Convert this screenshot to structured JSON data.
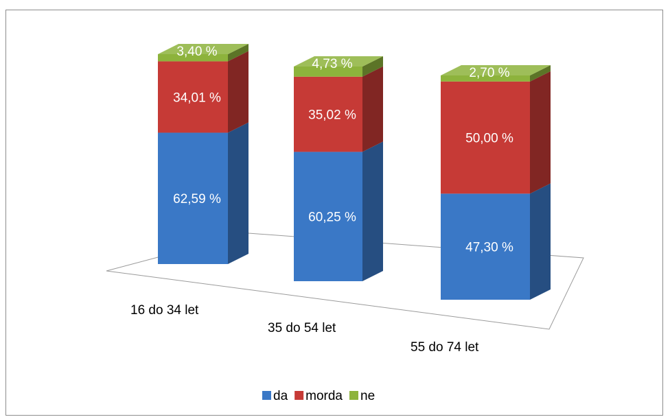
{
  "chart_data": {
    "type": "bar",
    "subtype": "stacked-100-3d",
    "categories": [
      "16 do 34 let",
      "35 do 54 let",
      "55 do 74 let"
    ],
    "series": [
      {
        "name": "da",
        "values": [
          62.59,
          60.25,
          47.3
        ],
        "labels": [
          "62,59 %",
          "60,25 %",
          "47,30 %"
        ],
        "color": "#3a78c6"
      },
      {
        "name": "morda",
        "values": [
          34.01,
          35.02,
          50.0
        ],
        "labels": [
          "34,01 %",
          "35,02 %",
          "50,00 %"
        ],
        "color": "#c63a36"
      },
      {
        "name": "ne",
        "values": [
          3.4,
          4.73,
          2.7
        ],
        "labels": [
          "3,40 %",
          "4,73 %",
          "2,70 %"
        ],
        "color": "#8db33c"
      }
    ],
    "ylim": [
      0,
      100
    ],
    "legend_position": "bottom",
    "grid": false
  }
}
